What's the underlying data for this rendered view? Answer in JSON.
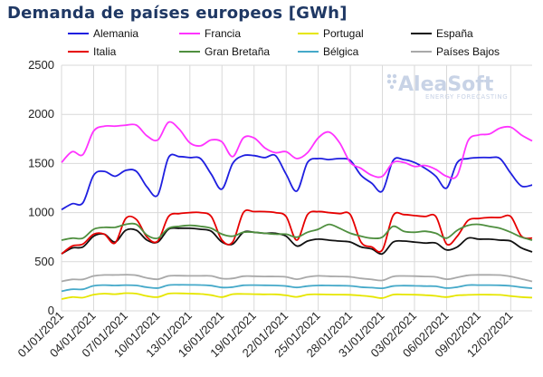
{
  "title": "Demanda de países europeos [GWh]",
  "watermark": {
    "brand": "AleaSoft",
    "tagline": "ENERGY FORECASTING"
  },
  "chart_data": {
    "type": "line",
    "ylim": [
      0,
      2500
    ],
    "yticks": [
      0,
      500,
      1000,
      1500,
      2000,
      2500
    ],
    "grid": true,
    "legend_position": "top",
    "x": [
      "01/01/2021",
      "02/01/2021",
      "03/01/2021",
      "04/01/2021",
      "05/01/2021",
      "06/01/2021",
      "07/01/2021",
      "08/01/2021",
      "09/01/2021",
      "10/01/2021",
      "11/01/2021",
      "12/01/2021",
      "13/01/2021",
      "14/01/2021",
      "15/01/2021",
      "16/01/2021",
      "17/01/2021",
      "18/01/2021",
      "19/01/2021",
      "20/01/2021",
      "21/01/2021",
      "22/01/2021",
      "23/01/2021",
      "24/01/2021",
      "25/01/2021",
      "26/01/2021",
      "27/01/2021",
      "28/01/2021",
      "29/01/2021",
      "30/01/2021",
      "31/01/2021",
      "01/02/2021",
      "02/02/2021",
      "03/02/2021",
      "04/02/2021",
      "05/02/2021",
      "06/02/2021",
      "07/02/2021",
      "08/02/2021",
      "09/02/2021",
      "10/02/2021",
      "11/02/2021",
      "12/02/2021",
      "13/02/2021",
      "14/02/2021"
    ],
    "xtick_labels": [
      "01/01/2021",
      "04/01/2021",
      "07/01/2021",
      "10/01/2021",
      "13/01/2021",
      "16/01/2021",
      "19/01/2021",
      "22/01/2021",
      "25/01/2021",
      "28/01/2021",
      "31/01/2021",
      "03/02/2021",
      "06/02/2021",
      "09/02/2021",
      "12/02/2021"
    ],
    "series": [
      {
        "name": "Alemania",
        "color": "#1f1fe0",
        "values": [
          1030,
          1090,
          1100,
          1380,
          1420,
          1370,
          1430,
          1420,
          1260,
          1180,
          1560,
          1570,
          1560,
          1550,
          1390,
          1240,
          1500,
          1580,
          1580,
          1560,
          1580,
          1390,
          1220,
          1510,
          1550,
          1540,
          1550,
          1530,
          1380,
          1300,
          1220,
          1530,
          1540,
          1510,
          1450,
          1370,
          1250,
          1510,
          1550,
          1560,
          1560,
          1550,
          1400,
          1270,
          1280
        ]
      },
      {
        "name": "Francia",
        "color": "#ff33ff",
        "values": [
          1510,
          1620,
          1590,
          1830,
          1880,
          1880,
          1890,
          1890,
          1780,
          1740,
          1920,
          1850,
          1710,
          1680,
          1740,
          1720,
          1570,
          1760,
          1760,
          1660,
          1610,
          1620,
          1550,
          1610,
          1760,
          1820,
          1710,
          1510,
          1450,
          1380,
          1370,
          1510,
          1510,
          1470,
          1480,
          1440,
          1370,
          1380,
          1730,
          1790,
          1800,
          1860,
          1870,
          1790,
          1730
        ]
      },
      {
        "name": "Portugal",
        "color": "#e6e600",
        "values": [
          120,
          140,
          135,
          165,
          175,
          170,
          180,
          175,
          150,
          140,
          175,
          178,
          175,
          172,
          160,
          140,
          170,
          172,
          170,
          168,
          168,
          158,
          142,
          165,
          168,
          166,
          165,
          163,
          155,
          145,
          130,
          165,
          166,
          164,
          160,
          152,
          140,
          158,
          162,
          165,
          164,
          162,
          150,
          140,
          135
        ]
      },
      {
        "name": "España",
        "color": "#111111",
        "values": [
          580,
          640,
          650,
          760,
          780,
          700,
          820,
          820,
          720,
          700,
          830,
          840,
          840,
          830,
          810,
          700,
          680,
          800,
          800,
          790,
          790,
          760,
          660,
          710,
          730,
          720,
          710,
          700,
          650,
          630,
          580,
          700,
          710,
          700,
          690,
          690,
          620,
          650,
          740,
          730,
          730,
          720,
          710,
          640,
          600
        ]
      },
      {
        "name": "Italia",
        "color": "#e60000",
        "values": [
          580,
          660,
          680,
          780,
          780,
          690,
          940,
          930,
          750,
          710,
          960,
          990,
          1000,
          1000,
          960,
          720,
          700,
          1000,
          1010,
          1010,
          1000,
          960,
          720,
          980,
          1010,
          1000,
          990,
          980,
          700,
          650,
          620,
          970,
          980,
          970,
          960,
          960,
          680,
          760,
          920,
          940,
          950,
          950,
          960,
          760,
          740
        ]
      },
      {
        "name": "Gran Bretaña",
        "color": "#4f8f3f",
        "values": [
          720,
          740,
          740,
          830,
          850,
          850,
          880,
          880,
          770,
          740,
          840,
          860,
          870,
          860,
          840,
          780,
          760,
          800,
          800,
          790,
          780,
          780,
          750,
          800,
          830,
          880,
          840,
          790,
          760,
          740,
          750,
          860,
          810,
          800,
          810,
          790,
          740,
          820,
          870,
          880,
          860,
          840,
          800,
          750,
          720
        ]
      },
      {
        "name": "Bélgica",
        "color": "#45a9c9",
        "values": [
          200,
          220,
          220,
          255,
          262,
          258,
          262,
          258,
          240,
          232,
          262,
          265,
          264,
          263,
          256,
          238,
          242,
          260,
          262,
          260,
          258,
          252,
          238,
          252,
          258,
          258,
          256,
          254,
          242,
          236,
          230,
          252,
          256,
          255,
          252,
          250,
          232,
          242,
          262,
          262,
          262,
          260,
          254,
          240,
          230
        ]
      },
      {
        "name": "Países Bajos",
        "color": "#a9a9a9",
        "values": [
          300,
          320,
          320,
          355,
          365,
          365,
          368,
          362,
          335,
          322,
          355,
          358,
          356,
          356,
          355,
          328,
          330,
          352,
          352,
          350,
          350,
          345,
          322,
          345,
          356,
          352,
          350,
          346,
          330,
          320,
          310,
          350,
          355,
          353,
          350,
          345,
          322,
          340,
          362,
          366,
          366,
          364,
          350,
          325,
          300
        ]
      }
    ]
  }
}
